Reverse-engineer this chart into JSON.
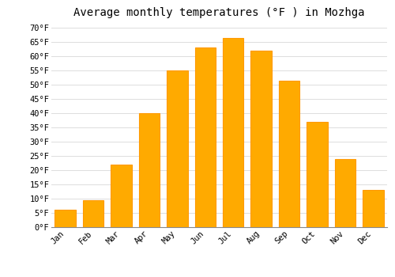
{
  "title": "Average monthly temperatures (°F ) in Mozhga",
  "months": [
    "Jan",
    "Feb",
    "Mar",
    "Apr",
    "May",
    "Jun",
    "Jul",
    "Aug",
    "Sep",
    "Oct",
    "Nov",
    "Dec"
  ],
  "values": [
    6,
    9.5,
    22,
    40,
    55,
    63,
    66.5,
    62,
    51.5,
    37,
    24,
    13
  ],
  "bar_color": "#FFAA00",
  "bar_edge_color": "#FF9900",
  "background_color": "#FFFFFF",
  "grid_color": "#DDDDDD",
  "ylim": [
    0,
    72
  ],
  "yticks": [
    0,
    5,
    10,
    15,
    20,
    25,
    30,
    35,
    40,
    45,
    50,
    55,
    60,
    65,
    70
  ],
  "tick_label_suffix": "°F",
  "title_fontsize": 10,
  "tick_fontsize": 7.5,
  "font_family": "monospace"
}
